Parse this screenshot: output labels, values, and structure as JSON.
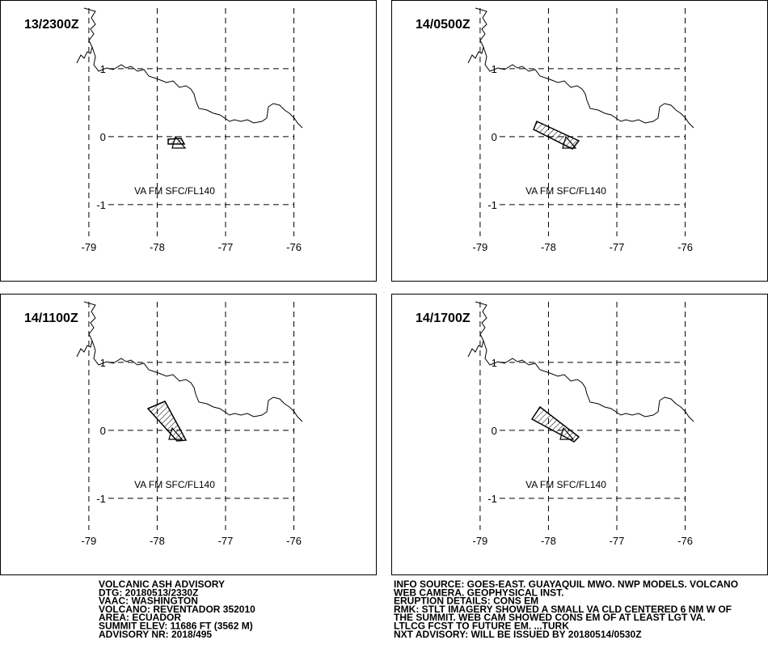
{
  "panels": [
    {
      "time": "13/2300Z",
      "label": "VA FM SFC/FL140",
      "xticks": [
        -79,
        -78,
        -77,
        -76
      ],
      "yticks": [
        1,
        0,
        -1
      ],
      "xlim": [
        -80.3,
        -74.8
      ],
      "ylim": [
        -2.12,
        2.01
      ]
    },
    {
      "time": "14/0500Z",
      "label": "VA FM SFC/FL140",
      "xticks": [
        -79,
        -78,
        -77,
        -76
      ],
      "yticks": [
        1,
        0,
        -1
      ],
      "xlim": [
        -80.3,
        -74.8
      ],
      "ylim": [
        -2.12,
        2.01
      ]
    },
    {
      "time": "14/1100Z",
      "label": "VA FM SFC/FL140",
      "xticks": [
        -79,
        -78,
        -77,
        -76
      ],
      "yticks": [
        1,
        0,
        -1
      ],
      "xlim": [
        -80.3,
        -74.8
      ],
      "ylim": [
        -2.12,
        2.01
      ]
    },
    {
      "time": "14/1700Z",
      "label": "VA FM SFC/FL140",
      "xticks": [
        -79,
        -78,
        -77,
        -76
      ],
      "yticks": [
        1,
        0,
        -1
      ],
      "xlim": [
        -80.3,
        -74.8
      ],
      "ylim": [
        -2.12,
        2.01
      ]
    }
  ],
  "advisory": {
    "left": [
      "VOLCANIC ASH ADVISORY",
      "DTG: 20180513/2330Z",
      "VAAC: WASHINGTON",
      "VOLCANO: REVENTADOR 352010",
      "AREA: ECUADOR",
      "SUMMIT ELEV: 11686 FT (3562 M)",
      "ADVISORY NR: 2018/495"
    ],
    "right": [
      "INFO SOURCE: GOES-EAST. GUAYAQUIL MWO. NWP MODELS. VOLCANO",
      "WEB CAMERA. GEOPHYSICAL INST.",
      "ERUPTION DETAILS: CONS EM",
      "RMK: STLT IMAGERY SHOWED A SMALL VA CLD CENTERED 6 NM W OF",
      "THE SUMMIT. WEB CAM SHOWED CONS EM OF AT LEAST LGT VA.",
      "LTLCG FCST TO FUTURE EM. ...TURK",
      "NXT ADVISORY: WILL BE ISSUED BY 20180514/0530Z"
    ]
  }
}
